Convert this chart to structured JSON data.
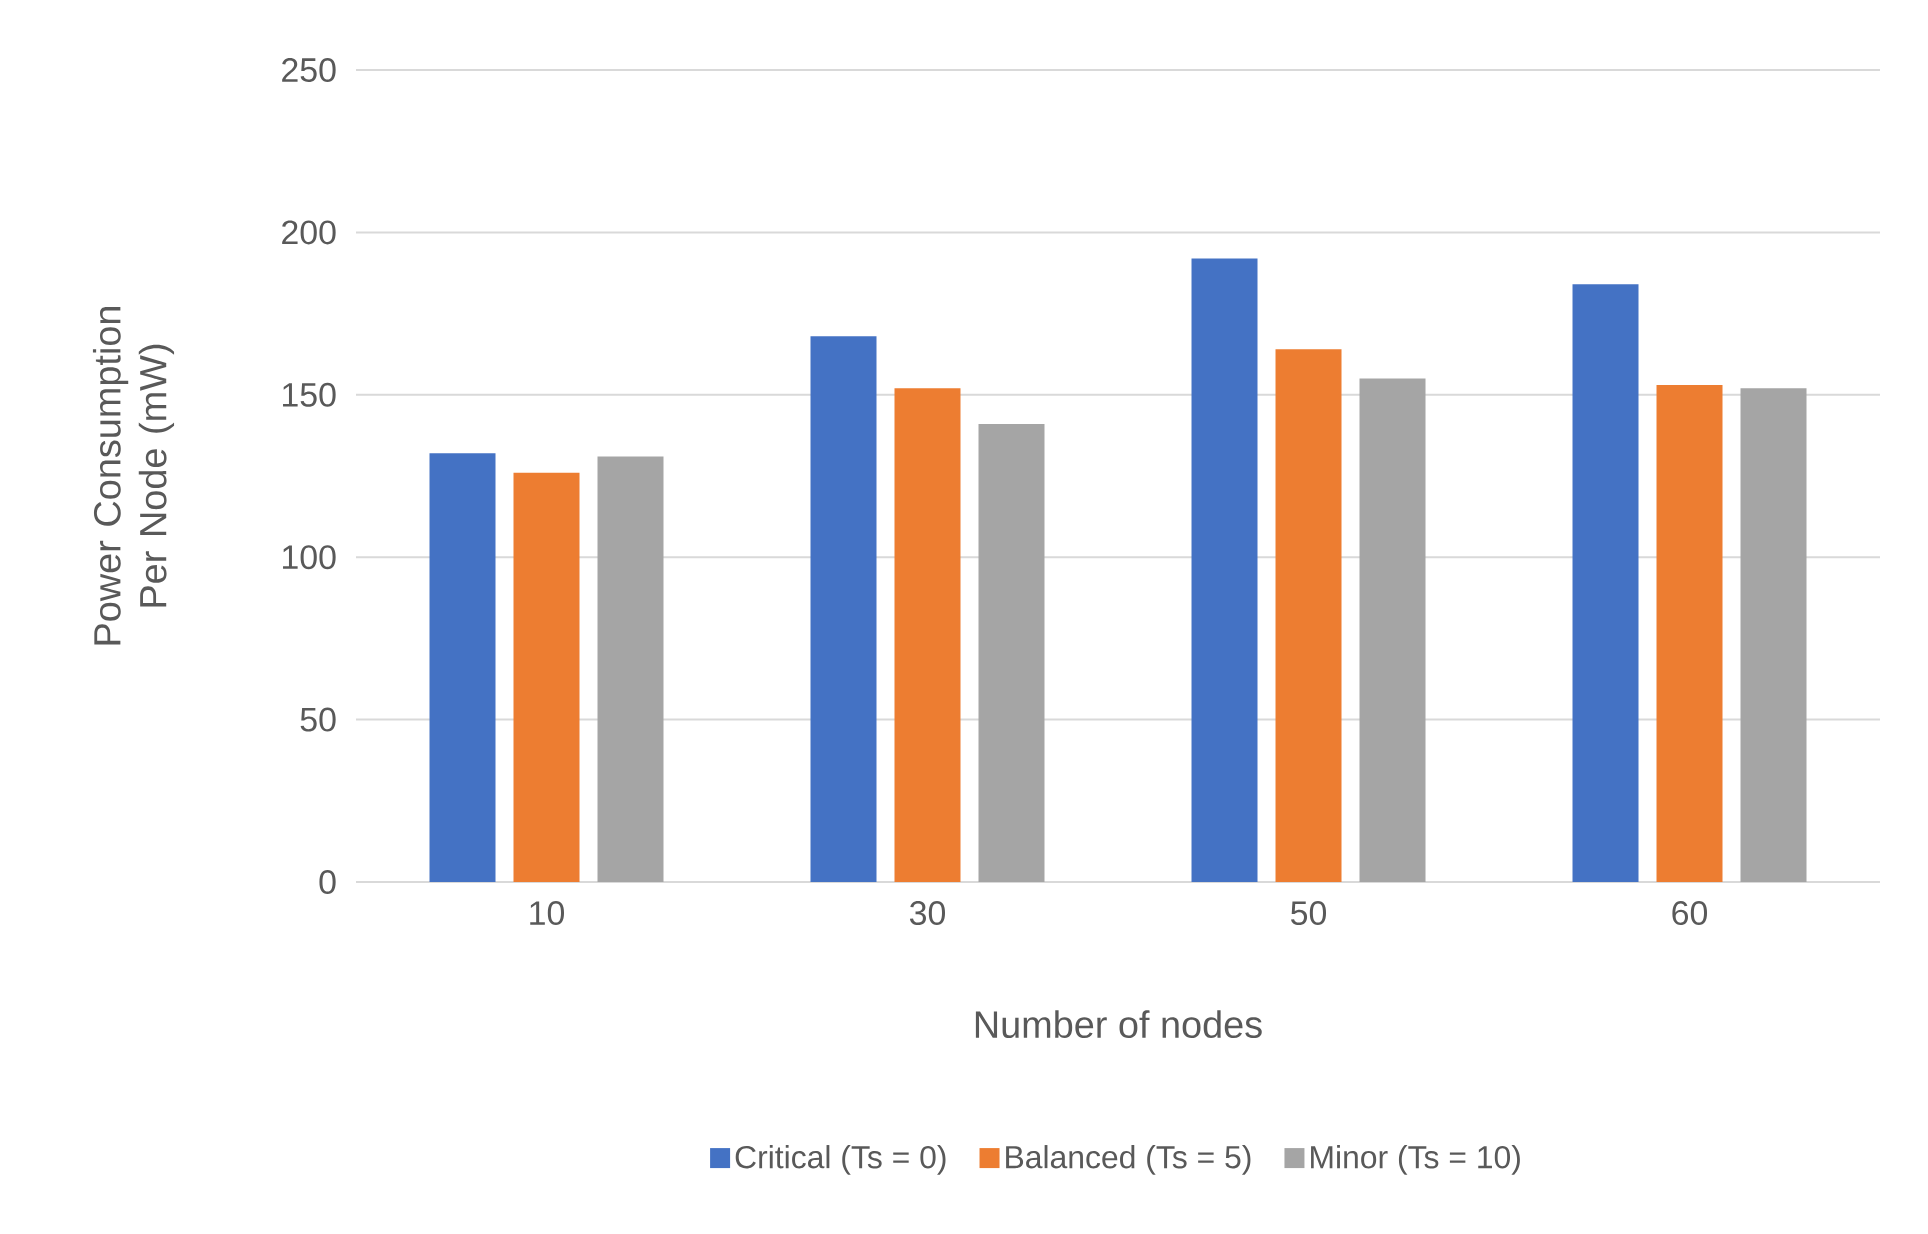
{
  "chart_data": {
    "type": "bar",
    "xlabel": "Number of nodes",
    "ylabel": "Power Consumption Per Node (mW)",
    "categories": [
      "10",
      "30",
      "50",
      "60"
    ],
    "series": [
      {
        "name": "Critical (Ts = 0)",
        "color": "#4472c4",
        "values": [
          132,
          168,
          192,
          184
        ]
      },
      {
        "name": "Balanced (Ts = 5)",
        "color": "#ed7d31",
        "values": [
          126,
          152,
          164,
          153
        ]
      },
      {
        "name": "Minor (Ts = 10)",
        "color": "#a5a5a5",
        "values": [
          131,
          141,
          155,
          152
        ]
      }
    ],
    "ylim": [
      0,
      250
    ],
    "yticks": [
      0,
      50,
      100,
      150,
      200,
      250
    ],
    "grid": "y",
    "legend": "bottom"
  }
}
